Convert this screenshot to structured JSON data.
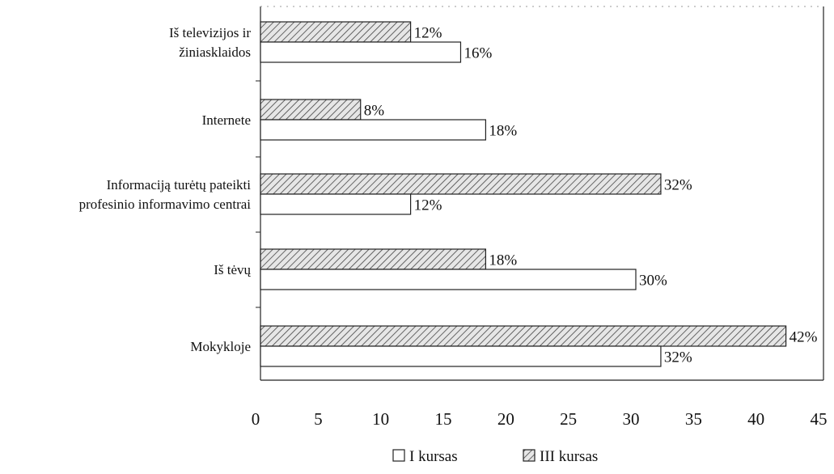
{
  "chart_data": {
    "type": "bar",
    "orientation": "horizontal",
    "categories": [
      [
        "Iš televizijos ir",
        "žiniasklaidos"
      ],
      [
        "Internete"
      ],
      [
        "Informaciją turėtų pateikti",
        "profesinio informavimo centrai"
      ],
      [
        "Iš tėvų"
      ],
      [
        "Mokykloje"
      ]
    ],
    "series": [
      {
        "name": "III kursas",
        "values": [
          12,
          8,
          32,
          18,
          42
        ],
        "labels": [
          "12%",
          "8%",
          "32%",
          "18%",
          "42%"
        ],
        "pattern": "hatched"
      },
      {
        "name": "I kursas",
        "values": [
          16,
          18,
          12,
          30,
          32
        ],
        "labels": [
          "16%",
          "18%",
          "12%",
          "30%",
          "32%"
        ],
        "pattern": "white"
      }
    ],
    "xlim": [
      0,
      45
    ],
    "xticks": [
      "0",
      "5",
      "10",
      "15",
      "20",
      "25",
      "30",
      "35",
      "40",
      "45"
    ],
    "title": "",
    "xlabel": "",
    "ylabel": "",
    "legend": {
      "position": "bottom",
      "items": [
        {
          "label": "I kursas",
          "pattern": "white"
        },
        {
          "label": "III kursas",
          "pattern": "hatched"
        }
      ]
    }
  }
}
